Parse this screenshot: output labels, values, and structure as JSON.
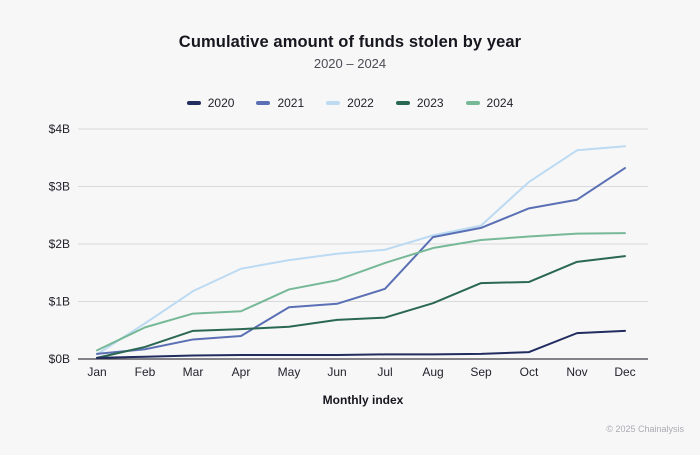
{
  "header": {
    "title": "Cumulative amount of funds stolen by year",
    "subtitle": "2020 – 2024"
  },
  "footer": {
    "attribution": "© 2025 Chainalysis"
  },
  "colors": {
    "background": "#f7f7f8",
    "gridline": "#d9d9dd",
    "axis_line": "#3c3c44"
  },
  "chart_data": {
    "type": "line",
    "title": "Cumulative amount of funds stolen by year",
    "subtitle": "2020 – 2024",
    "xlabel": "Monthly index",
    "ylabel": "",
    "ylim": [
      0,
      4
    ],
    "yticks": [
      "$0B",
      "$1B",
      "$2B",
      "$3B",
      "$4B"
    ],
    "grid": true,
    "legend_position": "top-center",
    "units": "billions USD",
    "categories": [
      "Jan",
      "Feb",
      "Mar",
      "Apr",
      "May",
      "Jun",
      "Jul",
      "Aug",
      "Sep",
      "Oct",
      "Nov",
      "Dec"
    ],
    "series": [
      {
        "name": "2020",
        "color": "#212c5f",
        "values": [
          0.02,
          0.04,
          0.06,
          0.07,
          0.07,
          0.07,
          0.08,
          0.08,
          0.09,
          0.12,
          0.45,
          0.49
        ]
      },
      {
        "name": "2021",
        "color": "#5b70b4",
        "values": [
          0.09,
          0.17,
          0.34,
          0.4,
          0.9,
          0.96,
          1.22,
          2.12,
          2.28,
          2.62,
          2.77,
          3.32
        ]
      },
      {
        "name": "2022",
        "color": "#bcdaf2",
        "values": [
          0.08,
          0.62,
          1.18,
          1.57,
          1.72,
          1.83,
          1.9,
          2.15,
          2.32,
          3.08,
          3.63,
          3.7
        ]
      },
      {
        "name": "2023",
        "color": "#2b6852",
        "values": [
          0.02,
          0.21,
          0.49,
          0.52,
          0.56,
          0.68,
          0.72,
          0.97,
          1.32,
          1.34,
          1.69,
          1.79
        ]
      },
      {
        "name": "2024",
        "color": "#77b997",
        "values": [
          0.15,
          0.55,
          0.79,
          0.83,
          1.21,
          1.37,
          1.67,
          1.93,
          2.07,
          2.13,
          2.18,
          2.19
        ]
      }
    ]
  }
}
